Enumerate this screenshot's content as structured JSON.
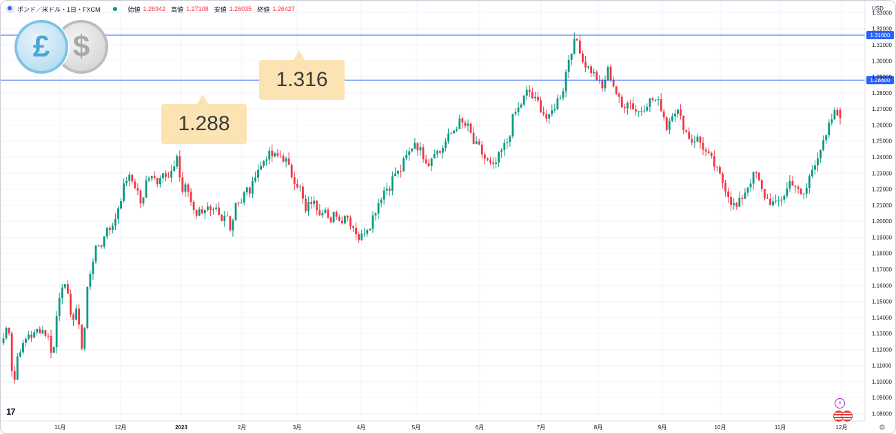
{
  "legend": {
    "title": "ポンド／米ドル・1日・FXCM",
    "open_label": "始値",
    "open": "1.26942",
    "high_label": "高値",
    "high": "1.27108",
    "low_label": "安値",
    "low": "1.26035",
    "close_label": "終値",
    "close": "1.26427"
  },
  "currency_badge": {
    "base_icon": "pound-coin-icon",
    "quote_icon": "dollar-coin-icon",
    "base_symbol": "£",
    "quote_symbol": "$"
  },
  "callouts": [
    {
      "text": "1.316"
    },
    {
      "text": "1.288"
    }
  ],
  "colors": {
    "up": "#089981",
    "down": "#f23645",
    "hline": "#2962ff",
    "callout": "#fce3b3"
  },
  "chart_data": {
    "type": "candlestick",
    "currency_label": "USD",
    "y_ticks": [
      "1.33000",
      "1.32000",
      "1.31000",
      "1.30000",
      "1.29000",
      "1.28000",
      "1.27000",
      "1.26000",
      "1.25000",
      "1.24000",
      "1.23000",
      "1.22000",
      "1.21000",
      "1.20000",
      "1.19000",
      "1.18000",
      "1.17000",
      "1.16000",
      "1.15000",
      "1.14000",
      "1.13000",
      "1.12000",
      "1.11000",
      "1.10000",
      "1.09000",
      "1.08000"
    ],
    "ylim": [
      1.0755,
      1.3375
    ],
    "x_ticks": [
      "11月",
      "12月",
      "2023",
      "2月",
      "3月",
      "4月",
      "5月",
      "6月",
      "7月",
      "8月",
      "9月",
      "10月",
      "11月",
      "12月"
    ],
    "horizontal_lines": [
      {
        "value": 1.316,
        "label": "1.31600"
      },
      {
        "value": 1.288,
        "label": "1.28800"
      }
    ],
    "path": [
      [
        1.127,
        1.138
      ],
      [
        1.095,
        1.12
      ],
      [
        1.122,
        1.13
      ],
      [
        1.128,
        1.133
      ],
      [
        1.132,
        1.128
      ],
      [
        1.115,
        1.15
      ],
      [
        1.163,
        1.152
      ],
      [
        1.138,
        1.145
      ],
      [
        1.116,
        1.16
      ],
      [
        1.176,
        1.185
      ],
      [
        1.186,
        1.198
      ],
      [
        1.195,
        1.207
      ],
      [
        1.218,
        1.228
      ],
      [
        1.225,
        1.22
      ],
      [
        1.208,
        1.228
      ],
      [
        1.23,
        1.225
      ],
      [
        1.232,
        1.225
      ],
      [
        1.229,
        1.242
      ],
      [
        1.218,
        1.222
      ],
      [
        1.211,
        1.205
      ],
      [
        1.207,
        1.209
      ],
      [
        1.204,
        1.206
      ],
      [
        1.198,
        1.205
      ],
      [
        1.195,
        1.214
      ],
      [
        1.212,
        1.22
      ],
      [
        1.218,
        1.232
      ],
      [
        1.234,
        1.241
      ],
      [
        1.241,
        1.24
      ],
      [
        1.241,
        1.238
      ],
      [
        1.23,
        1.225
      ],
      [
        1.22,
        1.205
      ],
      [
        1.213,
        1.21
      ],
      [
        1.206,
        1.21
      ],
      [
        1.196,
        1.207
      ],
      [
        1.199,
        1.205
      ],
      [
        1.2,
        1.195
      ],
      [
        1.188,
        1.195
      ],
      [
        1.198,
        1.206
      ],
      [
        1.214,
        1.22
      ],
      [
        1.222,
        1.23
      ],
      [
        1.23,
        1.238
      ],
      [
        1.243,
        1.25
      ],
      [
        1.245,
        1.24
      ],
      [
        1.236,
        1.245
      ],
      [
        1.242,
        1.248
      ],
      [
        1.253,
        1.257
      ],
      [
        1.262,
        1.26
      ],
      [
        1.258,
        1.248
      ],
      [
        1.246,
        1.24
      ],
      [
        1.236,
        1.233
      ],
      [
        1.24,
        1.246
      ],
      [
        1.251,
        1.266
      ],
      [
        1.27,
        1.276
      ],
      [
        1.282,
        1.276
      ],
      [
        1.274,
        1.268
      ],
      [
        1.262,
        1.27
      ],
      [
        1.276,
        1.282
      ],
      [
        1.3,
        1.31
      ],
      [
        1.313,
        1.3
      ],
      [
        1.296,
        1.293
      ],
      [
        1.288,
        1.282
      ],
      [
        1.295,
        1.287
      ],
      [
        1.278,
        1.27
      ],
      [
        1.276,
        1.272
      ],
      [
        1.268,
        1.27
      ],
      [
        1.274,
        1.276
      ],
      [
        1.275,
        1.27
      ],
      [
        1.258,
        1.268
      ],
      [
        1.27,
        1.262
      ],
      [
        1.255,
        1.25
      ],
      [
        1.252,
        1.248
      ],
      [
        1.242,
        1.238
      ],
      [
        1.232,
        1.226
      ],
      [
        1.22,
        1.212
      ],
      [
        1.208,
        1.214
      ],
      [
        1.22,
        1.226
      ],
      [
        1.23,
        1.22
      ],
      [
        1.214,
        1.212
      ],
      [
        1.21,
        1.214
      ],
      [
        1.218,
        1.226
      ],
      [
        1.222,
        1.215
      ],
      [
        1.218,
        1.23
      ],
      [
        1.238,
        1.245
      ],
      [
        1.25,
        1.262
      ],
      [
        1.268,
        1.264
      ]
    ]
  }
}
